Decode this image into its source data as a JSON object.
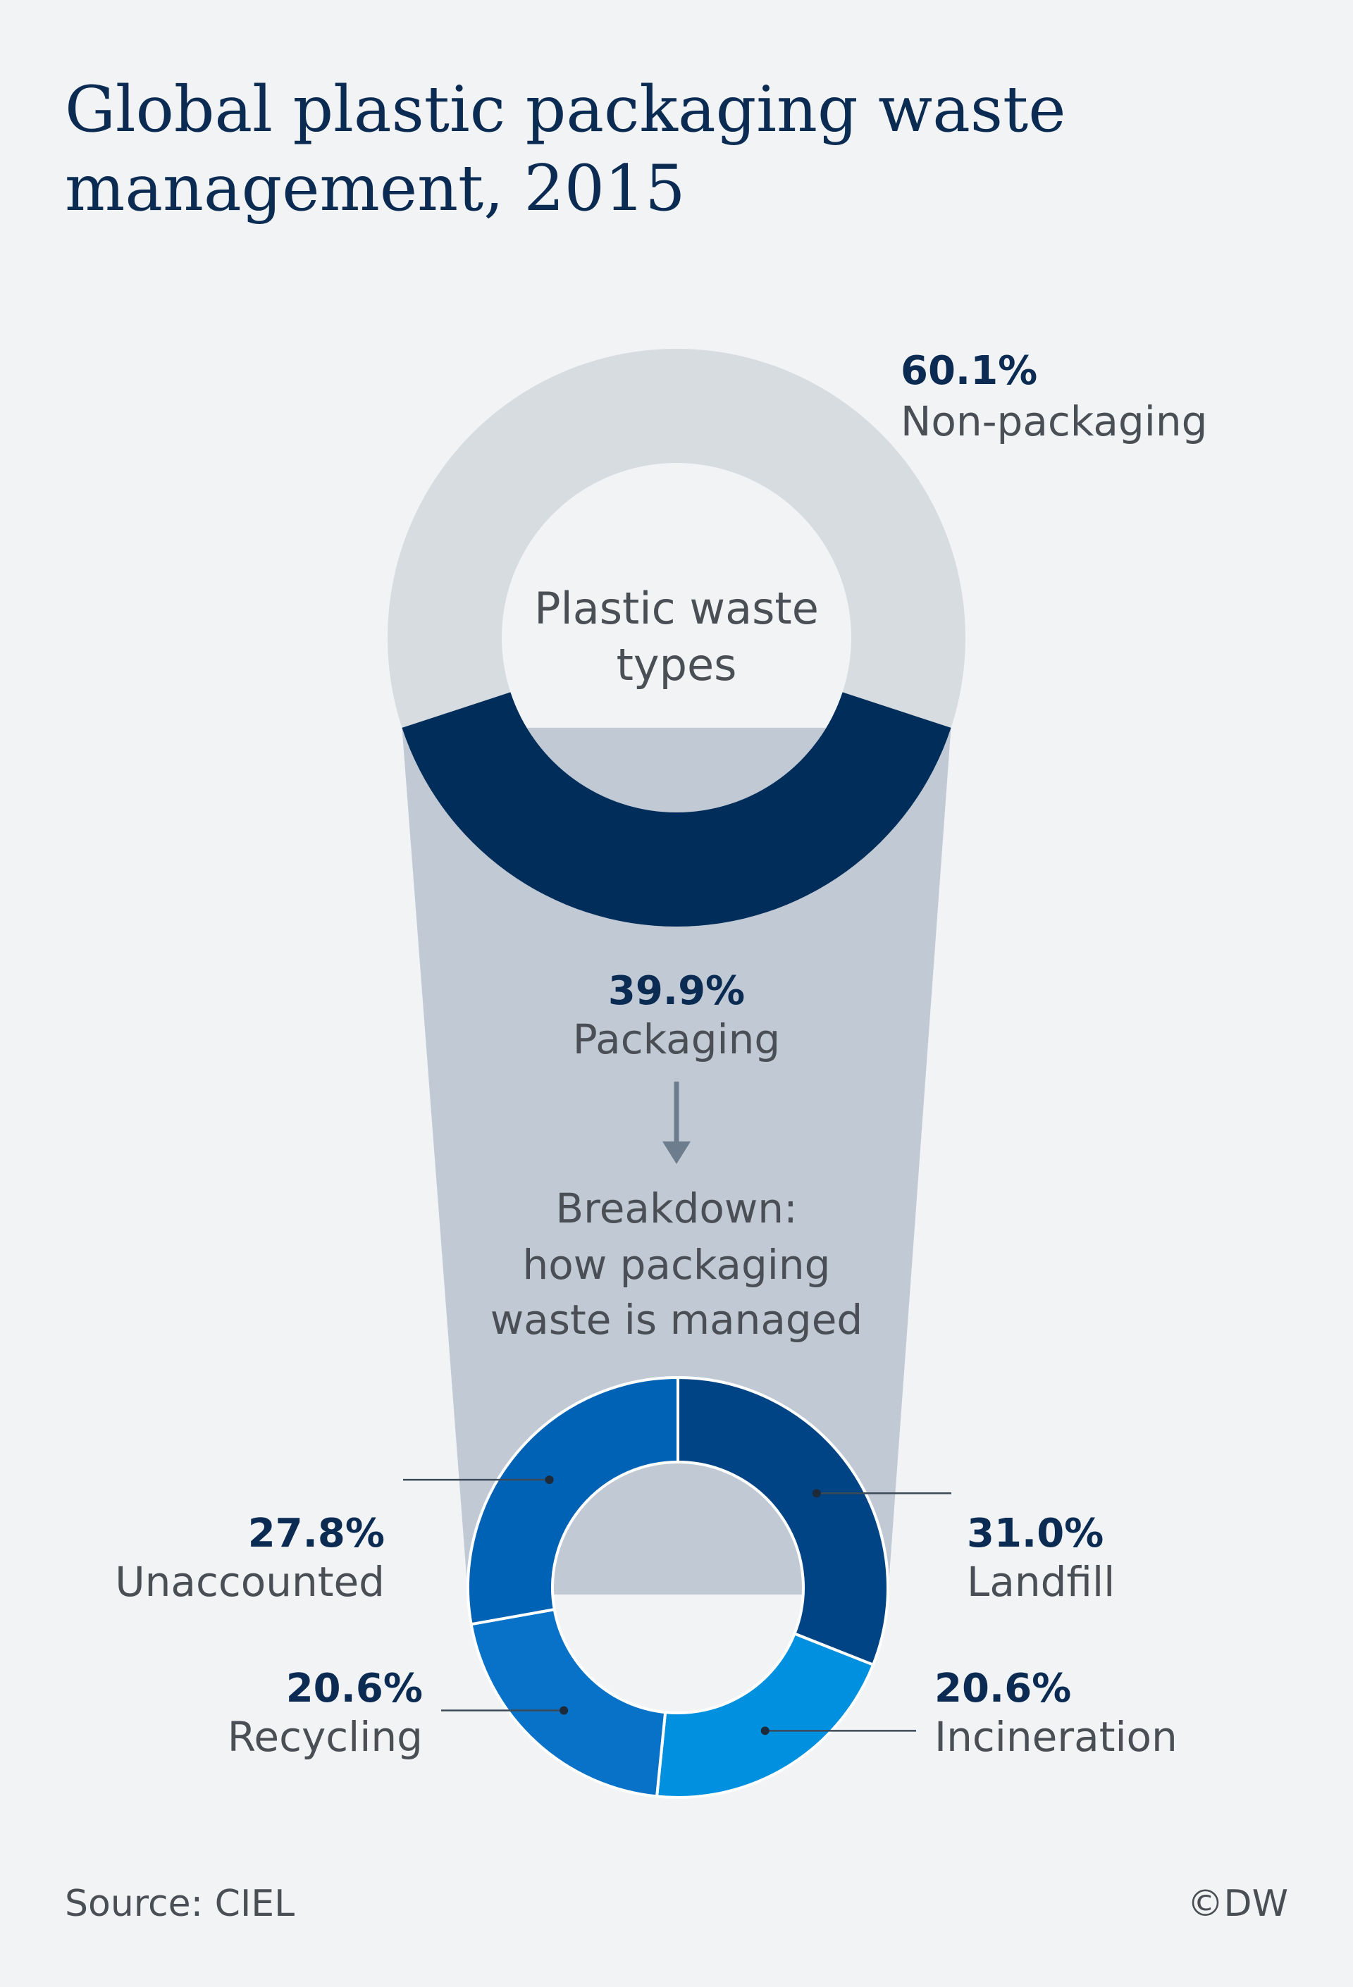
{
  "title": "Global plastic packaging waste management, 2015",
  "source": "Source: CIEL",
  "credit": "©DW",
  "top_donut": {
    "center_lines": [
      "Plastic waste",
      "types"
    ]
  },
  "breakdown_lines": [
    "Breakdown:",
    "how packaging",
    "waste is managed"
  ],
  "colors": {
    "non_packaging": "#d7dce1",
    "packaging": "#002d5a",
    "funnel": "#c1cad4",
    "landfill": "#004485",
    "incineration": "#0090e0",
    "recycling": "#0872c8",
    "unaccounted": "#0062b4",
    "title": "#0b2b52",
    "background": "#f1f3f5"
  },
  "chart_data": [
    {
      "type": "donut",
      "title": "",
      "categories": [
        "Non-packaging",
        "Packaging"
      ],
      "values": [
        60.1,
        39.9
      ],
      "labels": [
        "60.1%",
        "39.9%"
      ]
    },
    {
      "type": "donut",
      "title": "",
      "categories": [
        "Landfill",
        "Incineration",
        "Recycling",
        "Unaccounted"
      ],
      "values": [
        31.0,
        20.6,
        20.6,
        27.8
      ],
      "labels": [
        "31.0%",
        "20.6%",
        "20.6%",
        "27.8%"
      ]
    }
  ]
}
